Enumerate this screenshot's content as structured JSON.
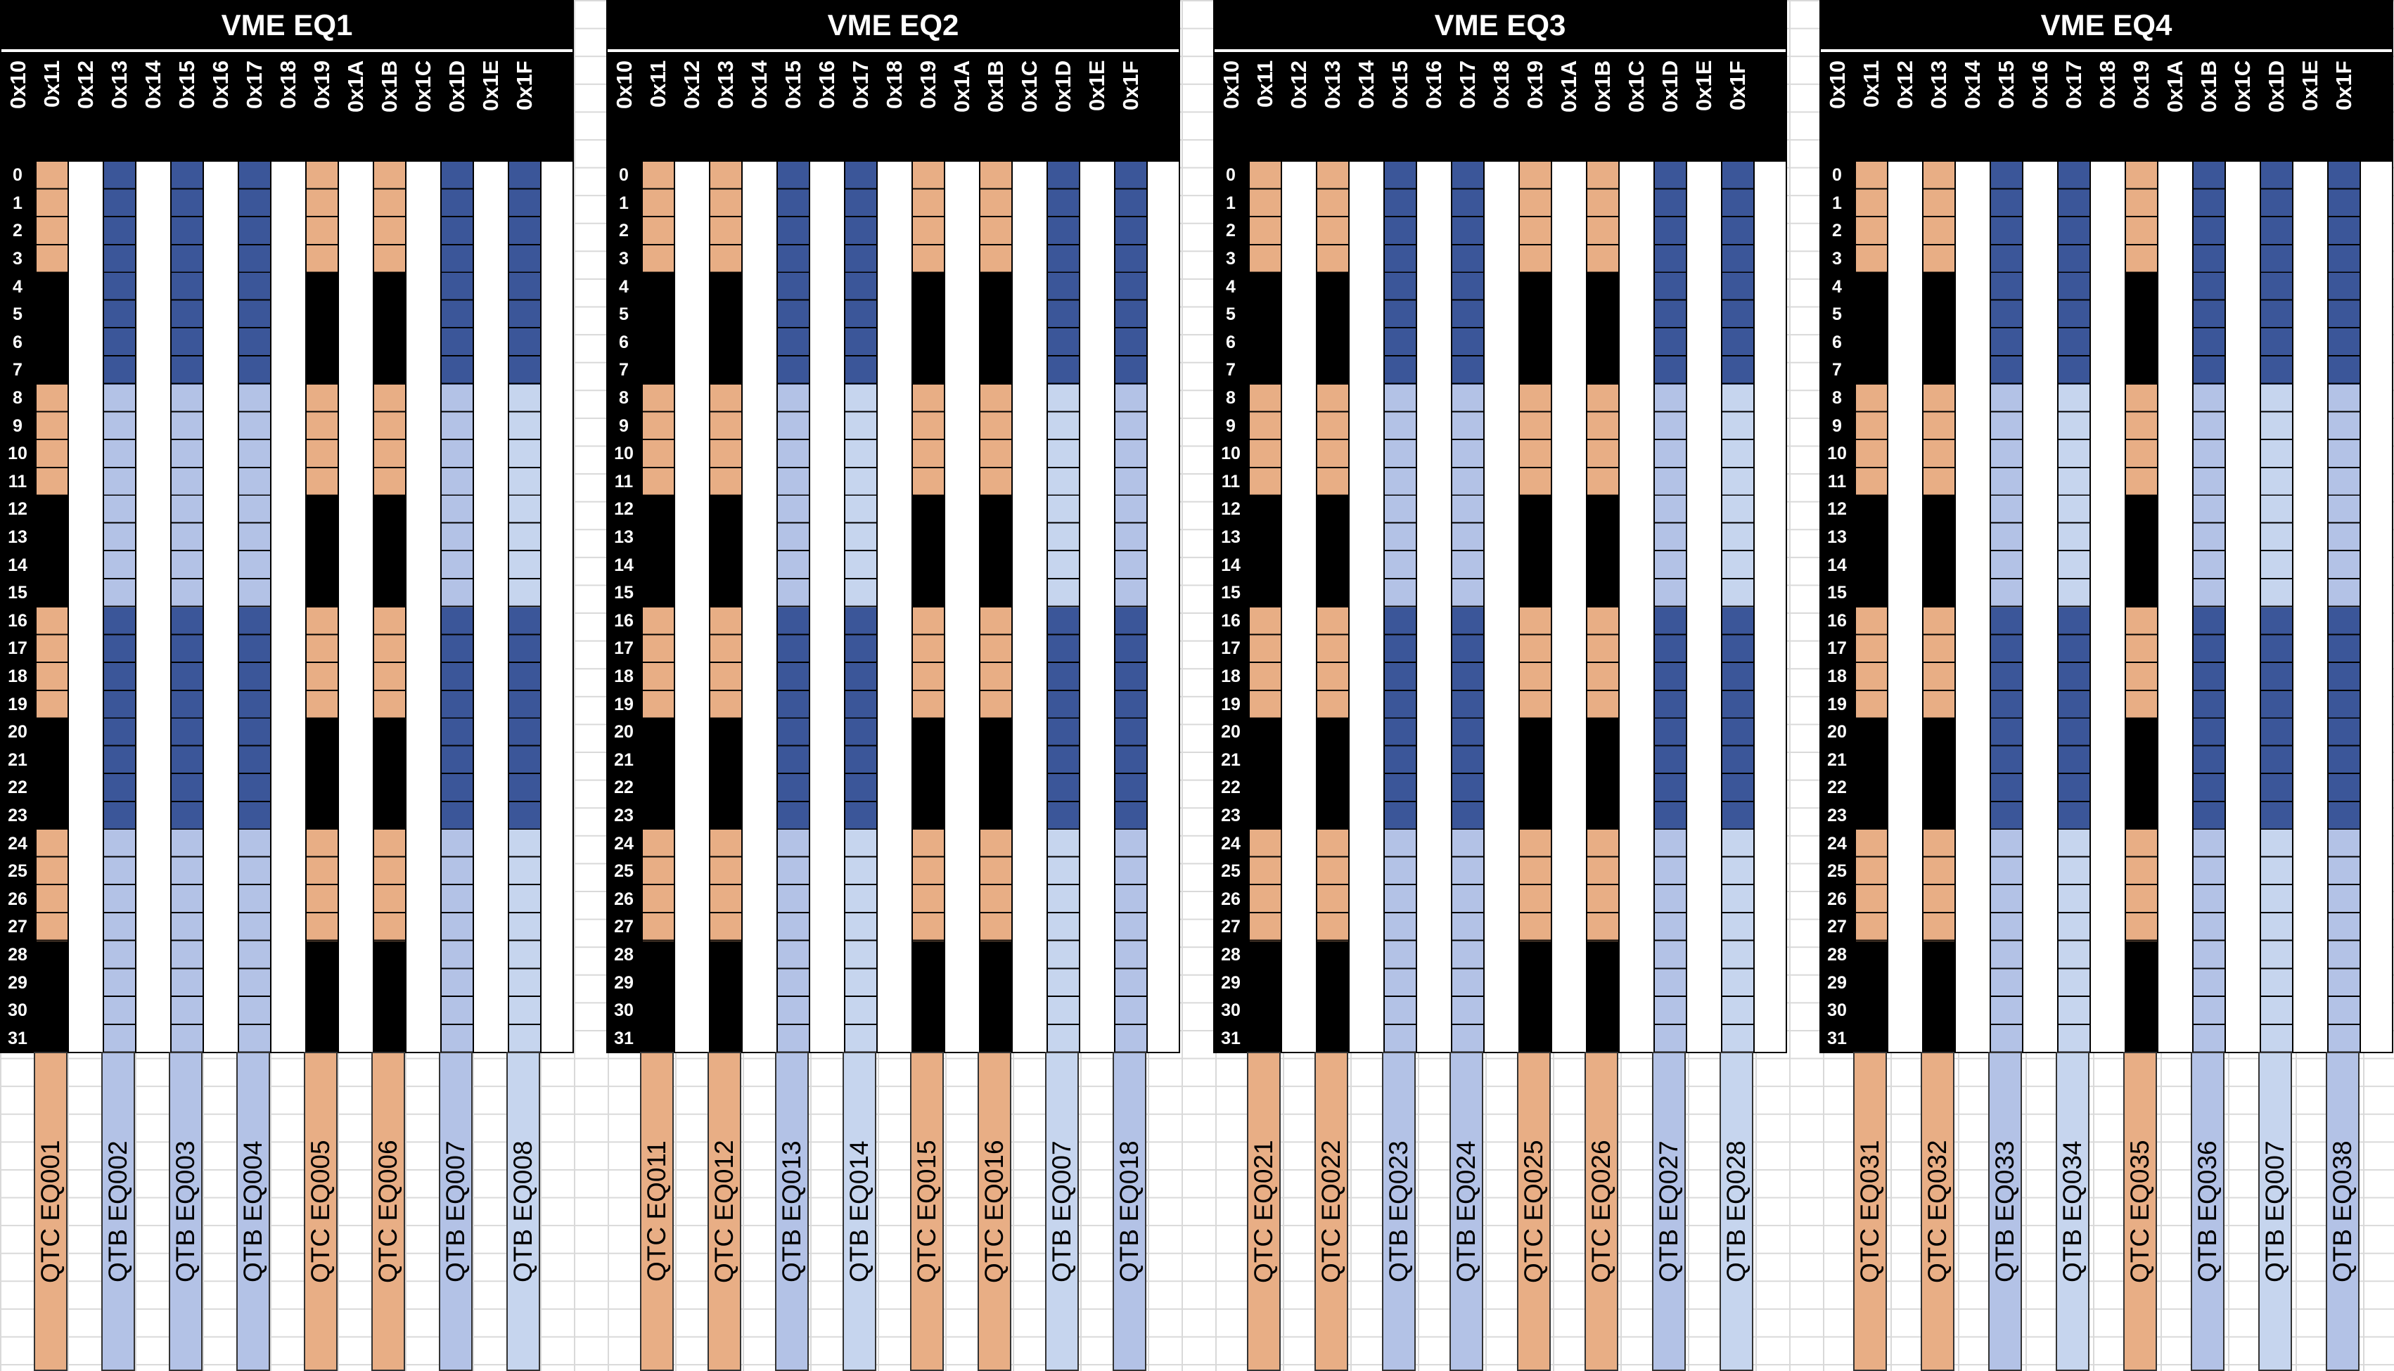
{
  "colors": {
    "qtc": "#e8ae85",
    "qtb_dark": "#3b5699",
    "qtb_light": "#b3c2e6",
    "qtb_lighter": "#c6d5ee",
    "black": "#000000"
  },
  "addresses": [
    "0x10",
    "0x11",
    "0x12",
    "0x13",
    "0x14",
    "0x15",
    "0x16",
    "0x17",
    "0x18",
    "0x19",
    "0x1A",
    "0x1B",
    "0x1C",
    "0x1D",
    "0x1E",
    "0x1F"
  ],
  "rows": [
    "0",
    "1",
    "2",
    "3",
    "4",
    "5",
    "6",
    "7",
    "8",
    "9",
    "10",
    "11",
    "12",
    "13",
    "14",
    "15",
    "16",
    "17",
    "18",
    "19",
    "20",
    "21",
    "22",
    "23",
    "24",
    "25",
    "26",
    "27",
    "28",
    "29",
    "30",
    "31"
  ],
  "crates": [
    {
      "title": "VME EQ1",
      "boards": [
        {
          "slot": 0,
          "label": "QTC EQ001",
          "type": "qtc"
        },
        {
          "slot": 2,
          "label": "QTB EQ002",
          "type": "qtb",
          "shade": "light"
        },
        {
          "slot": 4,
          "label": "QTB EQ003",
          "type": "qtb",
          "shade": "light"
        },
        {
          "slot": 6,
          "label": "QTB EQ004",
          "type": "qtb",
          "shade": "light"
        },
        {
          "slot": 8,
          "label": "QTC EQ005",
          "type": "qtc"
        },
        {
          "slot": 10,
          "label": "QTC EQ006",
          "type": "qtc"
        },
        {
          "slot": 12,
          "label": "QTB EQ007",
          "type": "qtb",
          "shade": "light"
        },
        {
          "slot": 14,
          "label": "QTB EQ008",
          "type": "qtb",
          "shade": "lighter"
        }
      ]
    },
    {
      "title": "VME EQ2",
      "boards": [
        {
          "slot": 0,
          "label": "QTC EQ011",
          "type": "qtc"
        },
        {
          "slot": 2,
          "label": "QTC EQ012",
          "type": "qtc"
        },
        {
          "slot": 4,
          "label": "QTB EQ013",
          "type": "qtb",
          "shade": "light"
        },
        {
          "slot": 6,
          "label": "QTB EQ014",
          "type": "qtb",
          "shade": "lighter"
        },
        {
          "slot": 8,
          "label": "QTC EQ015",
          "type": "qtc"
        },
        {
          "slot": 10,
          "label": "QTC EQ016",
          "type": "qtc"
        },
        {
          "slot": 12,
          "label": "QTB EQ007",
          "type": "qtb",
          "shade": "lighter"
        },
        {
          "slot": 14,
          "label": "QTB EQ018",
          "type": "qtb",
          "shade": "light"
        }
      ]
    },
    {
      "title": "VME EQ3",
      "boards": [
        {
          "slot": 0,
          "label": "QTC EQ021",
          "type": "qtc"
        },
        {
          "slot": 2,
          "label": "QTC EQ022",
          "type": "qtc"
        },
        {
          "slot": 4,
          "label": "QTB EQ023",
          "type": "qtb",
          "shade": "light"
        },
        {
          "slot": 6,
          "label": "QTB EQ024",
          "type": "qtb",
          "shade": "light"
        },
        {
          "slot": 8,
          "label": "QTC EQ025",
          "type": "qtc"
        },
        {
          "slot": 10,
          "label": "QTC EQ026",
          "type": "qtc"
        },
        {
          "slot": 12,
          "label": "QTB EQ027",
          "type": "qtb",
          "shade": "light"
        },
        {
          "slot": 14,
          "label": "QTB EQ028",
          "type": "qtb",
          "shade": "lighter"
        }
      ]
    },
    {
      "title": "VME EQ4",
      "boards": [
        {
          "slot": 0,
          "label": "QTC EQ031",
          "type": "qtc"
        },
        {
          "slot": 2,
          "label": "QTC EQ032",
          "type": "qtc"
        },
        {
          "slot": 4,
          "label": "QTB EQ033",
          "type": "qtb",
          "shade": "light"
        },
        {
          "slot": 6,
          "label": "QTB EQ034",
          "type": "qtb",
          "shade": "lighter"
        },
        {
          "slot": 8,
          "label": "QTC EQ035",
          "type": "qtc"
        },
        {
          "slot": 10,
          "label": "QTB EQ036",
          "type": "qtb",
          "shade": "light"
        },
        {
          "slot": 12,
          "label": "QTB EQ007",
          "type": "qtb",
          "shade": "lighter"
        },
        {
          "slot": 14,
          "label": "QTB EQ038",
          "type": "qtb",
          "shade": "light"
        }
      ]
    }
  ]
}
